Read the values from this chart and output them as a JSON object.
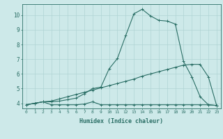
{
  "xlabel": "Humidex (Indice chaleur)",
  "background_color": "#cde9e9",
  "grid_color": "#b0d4d4",
  "line_color": "#2a6e65",
  "x_ticks": [
    0,
    1,
    2,
    3,
    4,
    5,
    6,
    7,
    8,
    9,
    10,
    11,
    12,
    13,
    14,
    15,
    16,
    17,
    18,
    19,
    20,
    21,
    22,
    23
  ],
  "y_ticks": [
    4,
    5,
    6,
    7,
    8,
    9,
    10
  ],
  "ylim": [
    3.65,
    10.75
  ],
  "xlim": [
    -0.5,
    23.5
  ],
  "series1_x": [
    0,
    1,
    2,
    3,
    4,
    5,
    6,
    7,
    8,
    9,
    10,
    11,
    12,
    13,
    14,
    15,
    16,
    17,
    18,
    19,
    20,
    21,
    22,
    23
  ],
  "series1_y": [
    3.9,
    4.0,
    4.1,
    3.9,
    3.9,
    3.9,
    3.9,
    3.95,
    4.1,
    3.9,
    3.9,
    3.9,
    3.9,
    3.9,
    3.9,
    3.9,
    3.9,
    3.9,
    3.9,
    3.9,
    3.9,
    3.9,
    3.9,
    3.85
  ],
  "series2_x": [
    0,
    1,
    2,
    3,
    4,
    5,
    6,
    7,
    8,
    9,
    10,
    11,
    12,
    13,
    14,
    15,
    16,
    17,
    18,
    19,
    20,
    21,
    22,
    23
  ],
  "series2_y": [
    3.9,
    4.0,
    4.1,
    4.15,
    4.3,
    4.45,
    4.6,
    4.75,
    4.9,
    5.05,
    5.2,
    5.35,
    5.5,
    5.65,
    5.85,
    6.0,
    6.15,
    6.3,
    6.45,
    6.6,
    6.65,
    6.65,
    5.8,
    3.85
  ],
  "series3_x": [
    0,
    1,
    2,
    3,
    4,
    5,
    6,
    7,
    8,
    9,
    10,
    11,
    12,
    13,
    14,
    15,
    16,
    17,
    18,
    19,
    20,
    21,
    22,
    23
  ],
  "series3_y": [
    3.9,
    4.0,
    4.1,
    4.1,
    4.15,
    4.25,
    4.35,
    4.65,
    5.0,
    5.1,
    6.35,
    7.05,
    8.6,
    10.1,
    10.4,
    9.95,
    9.65,
    9.6,
    9.4,
    6.85,
    5.8,
    4.45,
    3.9,
    3.85
  ]
}
